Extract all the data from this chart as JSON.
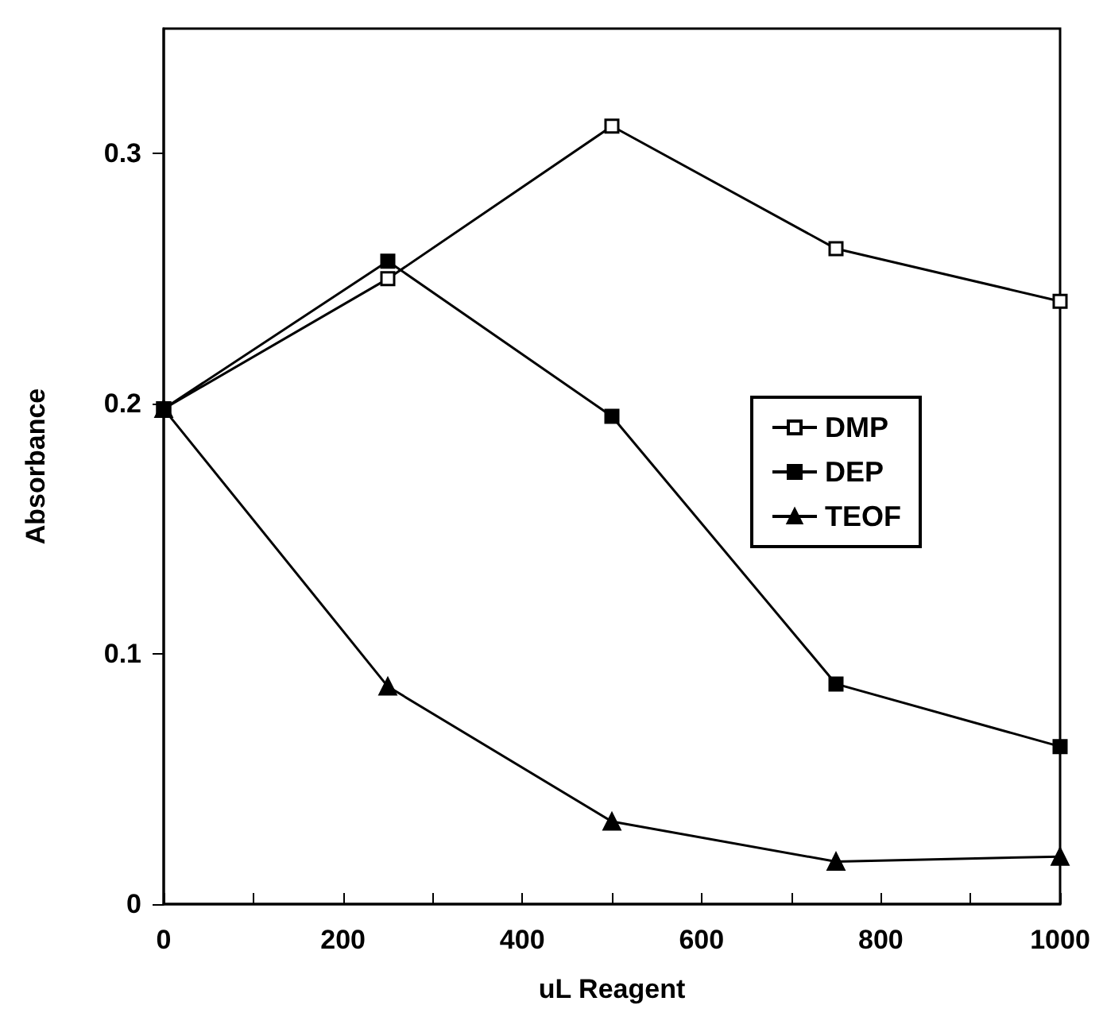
{
  "chart_data": {
    "type": "line",
    "xlabel": "uL Reagent",
    "ylabel": "Absorbance",
    "x": [
      0,
      250,
      500,
      750,
      1000
    ],
    "series": [
      {
        "name": "DMP",
        "color": "#000000",
        "marker": "square-open",
        "values": [
          0.198,
          0.25,
          0.311,
          0.262,
          0.241
        ]
      },
      {
        "name": "DEP",
        "color": "#000000",
        "marker": "square",
        "values": [
          0.198,
          0.257,
          0.195,
          0.088,
          0.063
        ]
      },
      {
        "name": "TEOF",
        "color": "#000000",
        "marker": "triangle",
        "values": [
          0.198,
          0.087,
          0.033,
          0.017,
          0.019
        ]
      }
    ],
    "xlim": [
      0,
      1000
    ],
    "ylim": [
      0,
      0.35
    ],
    "xticks": [
      0,
      {
        "value": 100,
        "label": null
      },
      200,
      {
        "value": 300,
        "label": null
      },
      400,
      {
        "value": 500,
        "label": null
      },
      600,
      {
        "value": 700,
        "label": null
      },
      800,
      {
        "value": 900,
        "label": null
      },
      1000
    ],
    "yticks": [
      0,
      0.1,
      0.2,
      0.3
    ],
    "grid": false,
    "legend": "right",
    "line_style": "solid"
  }
}
